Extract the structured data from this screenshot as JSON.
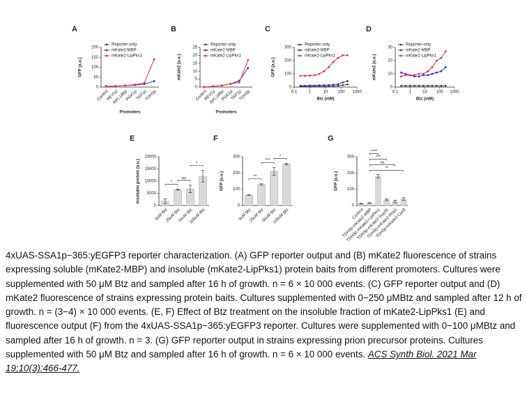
{
  "chart_data": [
    {
      "type": "line",
      "panel_label": "A",
      "y_label": "GFP (a.u.)",
      "x_label": "Promoters",
      "categories": [
        "Control",
        "REV1p",
        "RPL18Bp",
        "PGK1p",
        "TEF1p",
        "TDH3p"
      ],
      "series": [
        {
          "name": "Reporter-only",
          "color": "#444444",
          "values": [
            5,
            null,
            null,
            null,
            null,
            null
          ]
        },
        {
          "name": "mKate2-MBP",
          "color": "#2b2bd0",
          "values": [
            5,
            5,
            8,
            10,
            15,
            30
          ]
        },
        {
          "name": "mKate2-LipPks1",
          "color": "#e0303a",
          "values": [
            5,
            5,
            8,
            12,
            22,
            140
          ]
        }
      ],
      "ylim": [
        0,
        200
      ],
      "yticks": [
        0,
        50,
        100,
        150,
        200
      ],
      "legend": "top-left"
    },
    {
      "type": "line",
      "panel_label": "B",
      "y_label": "mKate2 (a.u.)",
      "x_label": "Promoters",
      "categories": [
        "Control",
        "REV1p",
        "RPL18Bp",
        "PGK1p",
        "TEF1p",
        "TDH3p"
      ],
      "series": [
        {
          "name": "Reporter-only",
          "color": "#444444",
          "values": [
            0,
            null,
            null,
            null,
            null,
            null
          ]
        },
        {
          "name": "mKate2-MBP",
          "color": "#2b2bd0",
          "values": [
            0,
            0.5,
            1,
            2,
            4,
            12
          ]
        },
        {
          "name": "mKate2-LipPks1",
          "color": "#e0303a",
          "values": [
            0,
            0.5,
            1,
            2,
            3,
            17
          ]
        }
      ],
      "ylim": [
        0,
        25
      ],
      "yticks": [
        0,
        5,
        10,
        15,
        20,
        25
      ],
      "legend": "top-left"
    },
    {
      "type": "line",
      "panel_label": "C",
      "y_label": "GFP (a.u.)",
      "x_label": "Btz (mM)",
      "xscale": "log",
      "x": [
        0.25,
        0.5,
        1,
        2,
        4,
        8,
        16,
        31,
        63,
        125,
        250
      ],
      "series": [
        {
          "name": "Reporter-only",
          "color": "#444444",
          "values": [
            5,
            5,
            5,
            5,
            6,
            6,
            7,
            8,
            10,
            15,
            20
          ]
        },
        {
          "name": "mKate2-MBP",
          "color": "#2b2bd0",
          "values": [
            10,
            10,
            12,
            12,
            13,
            14,
            15,
            18,
            22,
            35,
            45
          ]
        },
        {
          "name": "mKate2-LipPks1",
          "color": "#e0303a",
          "values": [
            85,
            85,
            87,
            90,
            100,
            120,
            150,
            190,
            220,
            240,
            240
          ]
        }
      ],
      "xlim": [
        0.1,
        1000
      ],
      "xticks": [
        0.1,
        1,
        10,
        100,
        1000
      ],
      "ylim": [
        0,
        300
      ],
      "yticks": [
        0,
        100,
        200,
        300
      ],
      "legend": "top-left"
    },
    {
      "type": "line",
      "panel_label": "D",
      "y_label": "mKate2 (a.u.)",
      "x_label": "Btz (mM)",
      "xscale": "log",
      "x": [
        0.25,
        0.5,
        1,
        2,
        4,
        8,
        16,
        31,
        63,
        125,
        250
      ],
      "series": [
        {
          "name": "Reporter-only",
          "color": "#444444",
          "values": [
            1,
            1,
            1,
            1,
            1,
            1,
            1,
            1,
            1,
            1,
            1
          ]
        },
        {
          "name": "mKate2-MBP",
          "color": "#2b2bd0",
          "values": [
            11,
            10,
            9,
            8,
            8,
            9,
            9,
            10,
            11,
            12,
            15
          ]
        },
        {
          "name": "mKate2-LipPks1",
          "color": "#e0303a",
          "values": [
            8,
            9,
            9,
            9,
            10,
            10,
            12,
            15,
            20,
            22,
            27
          ]
        }
      ],
      "xlim": [
        0.1,
        1000
      ],
      "xticks": [
        0.1,
        1,
        10,
        100,
        1000
      ],
      "ylim": [
        0,
        30
      ],
      "yticks": [
        0,
        10,
        20,
        30
      ],
      "legend": "top-left"
    },
    {
      "type": "bar",
      "panel_label": "E",
      "y_label": "Insoluble protein (a.u.)",
      "categories": [
        "0uM Btz",
        "25uM Btz",
        "50uM Btz",
        "100uM Btz"
      ],
      "values": [
        1800,
        6500,
        6800,
        12000
      ],
      "errors": [
        1000,
        200,
        1500,
        2500
      ],
      "color": "#d9d9d9",
      "annotations": [
        "*",
        "ns",
        "*"
      ],
      "ylim": [
        0,
        20000
      ],
      "yticks": [
        0,
        5000,
        10000,
        15000,
        20000
      ]
    },
    {
      "type": "bar",
      "panel_label": "F",
      "y_label": "GFP (a.u.)",
      "categories": [
        "0uM Btz",
        "25uM Btz",
        "50uM Btz",
        "100uM Btz"
      ],
      "values": [
        65,
        130,
        210,
        255
      ],
      "errors": [
        3,
        5,
        25,
        5
      ],
      "color": "#d9d9d9",
      "annotations": [
        "**",
        "***",
        "*"
      ],
      "ylim": [
        0,
        300
      ],
      "yticks": [
        0,
        100,
        200,
        300
      ]
    },
    {
      "type": "bar",
      "panel_label": "G",
      "y_label": "GFP (a.u.)",
      "categories": [
        "Control",
        "TDH3p-mKate2-MBP",
        "TDH3p-mKate2-LipPks1",
        "TDH3p-mKate2-Sup35",
        "TDH3p-mKate2-Rnq1",
        "TDH3p-mKate2-Cyc8"
      ],
      "values": [
        12,
        15,
        180,
        35,
        25,
        40
      ],
      "errors": [
        3,
        3,
        10,
        5,
        8,
        8
      ],
      "color": "#d9d9d9",
      "annotations": [
        "****",
        "***",
        "ns",
        "**"
      ],
      "ylim": [
        0,
        300
      ],
      "yticks": [
        0,
        100,
        200,
        300
      ]
    }
  ],
  "caption": {
    "text": "4xUAS-SSA1p−365:yEGFP3 reporter characterization. (A) GFP reporter output and (B) mKate2 fluorescence of strains expressing soluble (mKate2-MBP) and insoluble (mKate2-LipPks1) protein baits from different promoters. Cultures were supplemented with 50 μM Btz and sampled after 16 h of growth. n = 6 × 10 000 events. (C) GFP reporter output and (D) mKate2 fluorescence of strains expressing protein baits. Cultures supplemented with 0−250 μMBtz and sampled after 12 h of growth. n = (3−4) × 10 000 events. (E, F) Effect of Btz treatment on the insoluble fraction of mKate2-LipPks1 (E) and fluorescence output (F) from the 4xUAS-SSA1p−365:yEGFP3 reporter. Cultures were supplemented with 0−100 μMBtz and sampled after 16 h of growth. n = 3. (G) GFP reporter output in strains expressing prion precursor proteins. Cultures supplemented with 50 μM Btz and sampled after 16 h of growth. n = 6 × 10 000 events.",
    "citation": "ACS Synth Biol. 2021 Mar 19;10(3):466-477."
  }
}
